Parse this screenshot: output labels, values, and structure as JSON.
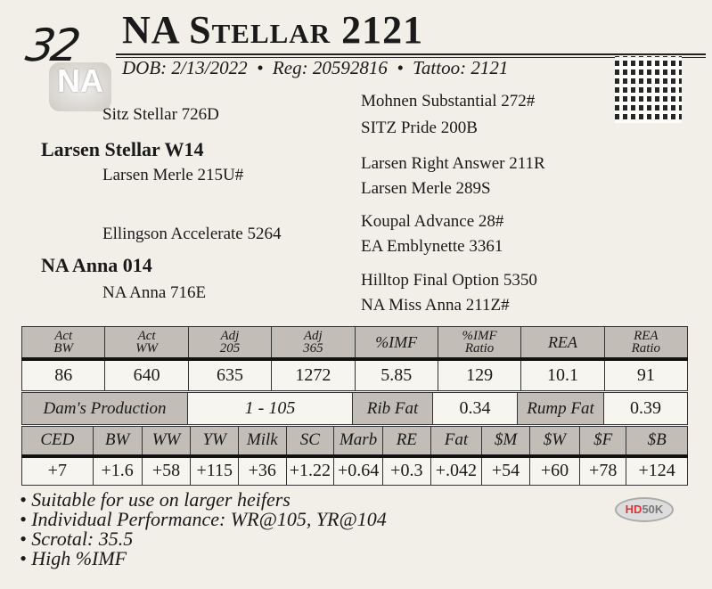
{
  "lot": "32",
  "logo_text": "NA",
  "title": "NA Stellar 2121",
  "info": "DOB: 2/13/2022  •  Reg: 20592816  •  Tattoo: 2121",
  "pedigree": {
    "sire": "Larsen Stellar W14",
    "sire_sire": "Sitz Stellar 726D",
    "sire_dam": "Larsen Merle 215U#",
    "dam": "NA Anna 014",
    "dam_sire": "Ellingson Accelerate 5264",
    "dam_dam": "NA Anna 716E",
    "sss": "Mohnen Substantial 272#",
    "ssd": "SITZ Pride 200B",
    "sds": "Larsen Right Answer 211R",
    "sdd": "Larsen Merle 289S",
    "dss": "Koupal Advance 28#",
    "dsd": "EA Emblynette 3361",
    "dds": "Hilltop Final Option 5350",
    "ddd": "NA Miss Anna 211Z#"
  },
  "performance": {
    "headers": [
      [
        "Act",
        "BW"
      ],
      [
        "Act",
        "WW"
      ],
      [
        "Adj",
        "205"
      ],
      [
        "Adj",
        "365"
      ],
      [
        "%IMF",
        ""
      ],
      [
        "%IMF",
        "Ratio"
      ],
      [
        "REA",
        ""
      ],
      [
        "REA",
        "Ratio"
      ]
    ],
    "values": [
      "86",
      "640",
      "635",
      "1272",
      "5.85",
      "129",
      "10.1",
      "91"
    ]
  },
  "production": {
    "dams_label": "Dam's Production",
    "dams_value": "1 - 105",
    "rib_label": "Rib Fat",
    "rib_value": "0.34",
    "rump_label": "Rump Fat",
    "rump_value": "0.39"
  },
  "epds": {
    "headers": [
      "CED",
      "BW",
      "WW",
      "YW",
      "Milk",
      "SC",
      "Marb",
      "RE",
      "Fat",
      "$M",
      "$W",
      "$F",
      "$B"
    ],
    "values": [
      "+7",
      "+1.6",
      "+58",
      "+115",
      "+36",
      "+1.22",
      "+0.64",
      "+0.3",
      "+.042",
      "+54",
      "+60",
      "+78",
      "+124"
    ]
  },
  "notes": [
    "• Suitable for use on larger heifers",
    "• Individual Performance: WR@105, YR@104",
    "• Scrotal: 35.5",
    "• High %IMF"
  ],
  "badge": {
    "hd": "HD",
    "fiftyk": "50K"
  }
}
